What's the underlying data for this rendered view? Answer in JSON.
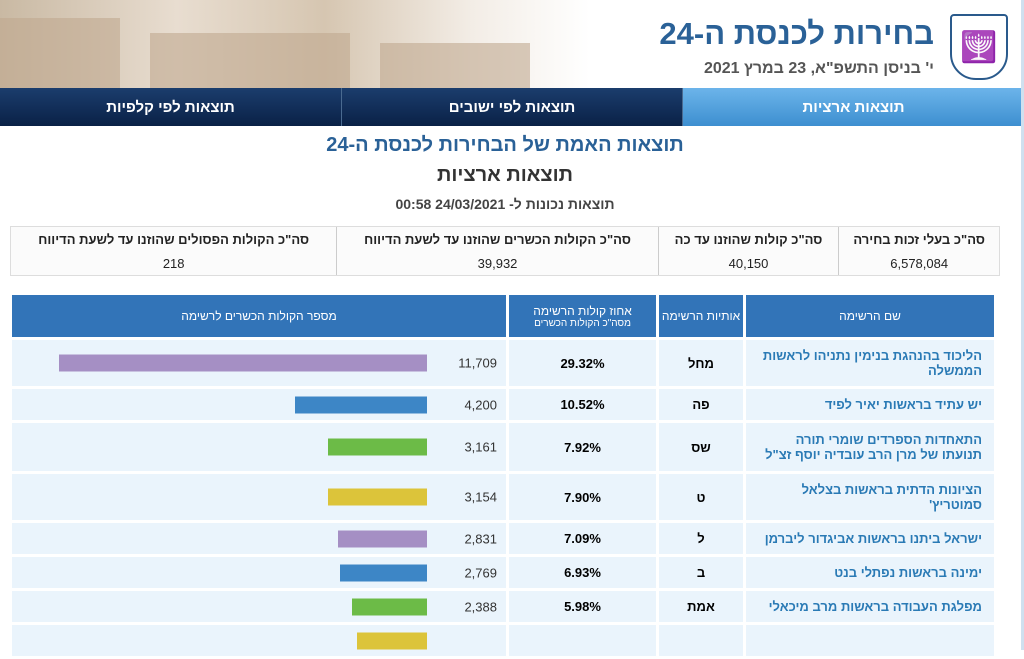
{
  "header": {
    "title": "בחירות לכנסת ה-24",
    "date": "י' בניסן התשפ\"א, 23 במרץ 2021",
    "logo_text": "ישראל"
  },
  "nav": {
    "tabs": [
      {
        "label": "תוצאות ארציות",
        "active": true
      },
      {
        "label": "תוצאות לפי ישובים"
      },
      {
        "label": "תוצאות לפי קלפיות"
      }
    ]
  },
  "main": {
    "heading": "תוצאות האמת של הבחירות לכנסת ה-24",
    "subheading": "תוצאות ארציות",
    "updated": "תוצאות נכונות ל- 24/03/2021 00:58"
  },
  "stats": [
    {
      "label": "סה\"כ בעלי זכות בחירה",
      "value": "6,578,084"
    },
    {
      "label": "סה\"כ קולות שהוזנו עד כה",
      "value": "40,150"
    },
    {
      "label": "סה\"כ הקולות הכשרים שהוזנו עד לשעת הדיווח",
      "value": "39,932"
    },
    {
      "label": "סה\"כ הקולות הפסולים שהוזנו עד לשעת הדיווח",
      "value": "218"
    }
  ],
  "table": {
    "headers": {
      "name": "שם הרשימה",
      "letters": "אותיות הרשימה",
      "pct": "אחוז קולות הרשימה",
      "pct_sub": "מסה\"כ הקולות הכשרים",
      "votes": "מספר הקולות הכשרים לרשימה"
    },
    "rows": [
      {
        "name": "הליכוד בהנהגת בנימין נתניהו לראשות הממשלה",
        "letters": "מחל",
        "pct": "29.32%",
        "votes": "11,709",
        "n": 11709,
        "color": "#a58fc4"
      },
      {
        "name": "יש עתיד בראשות יאיר לפיד",
        "letters": "פה",
        "pct": "10.52%",
        "votes": "4,200",
        "n": 4200,
        "color": "#3d86c6"
      },
      {
        "name": "התאחדות הספרדים שומרי תורה תנועתו של מרן הרב עובדיה יוסף זצ\"ל",
        "letters": "שס",
        "pct": "7.92%",
        "votes": "3,161",
        "n": 3161,
        "color": "#6cbb47"
      },
      {
        "name": "הציונות הדתית בראשות בצלאל סמוטריץ'",
        "letters": "ט",
        "pct": "7.90%",
        "votes": "3,154",
        "n": 3154,
        "color": "#dcc43a"
      },
      {
        "name": "ישראל ביתנו בראשות אביגדור ליברמן",
        "letters": "ל",
        "pct": "7.09%",
        "votes": "2,831",
        "n": 2831,
        "color": "#a58fc4"
      },
      {
        "name": "ימינה בראשות נפתלי בנט",
        "letters": "ב",
        "pct": "6.93%",
        "votes": "2,769",
        "n": 2769,
        "color": "#3d86c6"
      },
      {
        "name": "מפלגת העבודה בראשות מרב מיכאלי",
        "letters": "אמת",
        "pct": "5.98%",
        "votes": "2,388",
        "n": 2388,
        "color": "#6cbb47"
      },
      {
        "name": "",
        "letters": "",
        "pct": "",
        "votes": "",
        "n": 2240,
        "color": "#dcc43a"
      }
    ]
  }
}
